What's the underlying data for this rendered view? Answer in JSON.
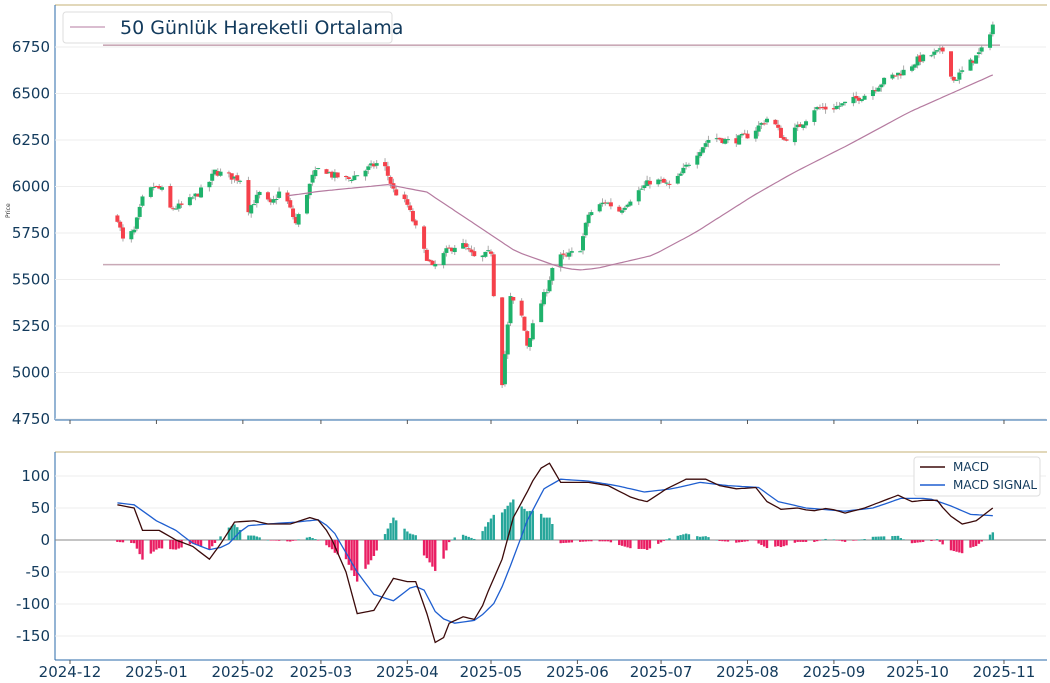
{
  "chart_data": [
    {
      "type": "candlestick",
      "title": "",
      "ylabel": "Price",
      "ylim": [
        4700,
        6976
      ],
      "yticks": [
        4750,
        5000,
        5250,
        5500,
        5750,
        6000,
        6250,
        6500,
        6750
      ],
      "legend": {
        "placement": "top-left",
        "entries": [
          "50 Günlük Hareketli Ortalama"
        ]
      },
      "colors": {
        "up": "#1fb26b",
        "down": "#f5414b",
        "ma": "#b57ba0",
        "level": "#c9a9b6",
        "axis_text": "#123a5c"
      },
      "horizontal_levels": [
        6760,
        5580
      ],
      "close_anchors": [
        [
          "2024-12-18",
          5830
        ],
        [
          "2024-12-20",
          5710
        ],
        [
          "2024-12-24",
          5760
        ],
        [
          "2024-12-27",
          5930
        ],
        [
          "2024-12-31",
          6000
        ],
        [
          "2025-01-03",
          5980
        ],
        [
          "2025-01-06",
          5880
        ],
        [
          "2025-01-11",
          5900
        ],
        [
          "2025-01-15",
          5950
        ],
        [
          "2025-01-19",
          6000
        ],
        [
          "2025-01-22",
          6080
        ],
        [
          "2025-01-26",
          6060
        ],
        [
          "2025-01-31",
          6040
        ],
        [
          "2025-02-03",
          5880
        ],
        [
          "2025-02-07",
          5960
        ],
        [
          "2025-02-11",
          5900
        ],
        [
          "2025-02-15",
          5990
        ],
        [
          "2025-02-20",
          5800
        ],
        [
          "2025-02-26",
          6050
        ],
        [
          "2025-03-01",
          6110
        ],
        [
          "2025-03-05",
          6060
        ],
        [
          "2025-03-11",
          6040
        ],
        [
          "2025-03-16",
          6080
        ],
        [
          "2025-03-23",
          6140
        ],
        [
          "2025-03-27",
          5980
        ],
        [
          "2025-04-01",
          5900
        ],
        [
          "2025-04-07",
          5650
        ],
        [
          "2025-04-10",
          5560
        ],
        [
          "2025-04-15",
          5650
        ],
        [
          "2025-04-20",
          5700
        ],
        [
          "2025-04-26",
          5600
        ],
        [
          "2025-05-01",
          5650
        ],
        [
          "2025-05-03",
          5200
        ],
        [
          "2025-05-05",
          4950
        ],
        [
          "2025-05-08",
          5400
        ],
        [
          "2025-05-12",
          5300
        ],
        [
          "2025-05-14",
          5150
        ],
        [
          "2025-05-17",
          5300
        ],
        [
          "2025-05-21",
          5450
        ],
        [
          "2025-05-24",
          5620
        ],
        [
          "2025-05-28",
          5620
        ],
        [
          "2025-06-02",
          5670
        ],
        [
          "2025-06-05",
          5850
        ],
        [
          "2025-06-11",
          5920
        ],
        [
          "2025-06-16",
          5870
        ],
        [
          "2025-06-21",
          5950
        ],
        [
          "2025-06-28",
          6040
        ],
        [
          "2025-07-05",
          6000
        ],
        [
          "2025-07-12",
          6150
        ],
        [
          "2025-07-19",
          6270
        ],
        [
          "2025-07-26",
          6240
        ],
        [
          "2025-08-02",
          6280
        ],
        [
          "2025-08-09",
          6380
        ],
        [
          "2025-08-14",
          6250
        ],
        [
          "2025-08-20",
          6330
        ],
        [
          "2025-08-25",
          6420
        ],
        [
          "2025-08-31",
          6420
        ],
        [
          "2025-09-06",
          6450
        ],
        [
          "2025-09-13",
          6500
        ],
        [
          "2025-09-20",
          6580
        ],
        [
          "2025-09-26",
          6620
        ],
        [
          "2025-10-01",
          6680
        ],
        [
          "2025-10-10",
          6730
        ],
        [
          "2025-10-14",
          6570
        ],
        [
          "2025-10-19",
          6650
        ],
        [
          "2025-10-24",
          6730
        ],
        [
          "2025-10-28",
          6870
        ]
      ],
      "ma50_anchors": [
        [
          "2025-02-17",
          5950
        ],
        [
          "2025-03-01",
          5975
        ],
        [
          "2025-03-25",
          6010
        ],
        [
          "2025-04-08",
          5970
        ],
        [
          "2025-04-25",
          5800
        ],
        [
          "2025-05-10",
          5650
        ],
        [
          "2025-05-25",
          5570
        ],
        [
          "2025-06-01",
          5550
        ],
        [
          "2025-06-08",
          5560
        ],
        [
          "2025-06-28",
          5630
        ],
        [
          "2025-07-13",
          5750
        ],
        [
          "2025-08-03",
          5950
        ],
        [
          "2025-08-17",
          6070
        ],
        [
          "2025-09-07",
          6230
        ],
        [
          "2025-09-28",
          6400
        ],
        [
          "2025-10-28",
          6600
        ]
      ]
    },
    {
      "type": "line",
      "ylim": [
        -187,
        137
      ],
      "yticks": [
        -150,
        -100,
        -50,
        0,
        50,
        100
      ],
      "xticks": [
        "2024-12",
        "2025-01",
        "2025-02",
        "2025-03",
        "2025-04",
        "2025-05",
        "2025-06",
        "2025-07",
        "2025-08",
        "2025-09",
        "2025-10",
        "2025-11"
      ],
      "legend": {
        "placement": "top-right",
        "entries": [
          "MACD",
          "MACD SIGNAL"
        ]
      },
      "colors": {
        "macd": "#3b0a0a",
        "signal": "#1f5fd0",
        "hist_pos": "#26a69a",
        "hist_neg": "#e91e63"
      },
      "series": [
        {
          "name": "MACD",
          "anchors": [
            [
              "2024-12-18",
              55
            ],
            [
              "2024-12-24",
              50
            ],
            [
              "2024-12-27",
              15
            ],
            [
              "2025-01-02",
              15
            ],
            [
              "2025-01-08",
              0
            ],
            [
              "2025-01-14",
              -10
            ],
            [
              "2025-01-20",
              -30
            ],
            [
              "2025-01-25",
              0
            ],
            [
              "2025-01-29",
              28
            ],
            [
              "2025-02-05",
              30
            ],
            [
              "2025-02-10",
              25
            ],
            [
              "2025-02-18",
              25
            ],
            [
              "2025-02-25",
              35
            ],
            [
              "2025-03-01",
              30
            ],
            [
              "2025-03-05",
              0
            ],
            [
              "2025-03-10",
              -50
            ],
            [
              "2025-03-14",
              -115
            ],
            [
              "2025-03-20",
              -110
            ],
            [
              "2025-03-27",
              -60
            ],
            [
              "2025-04-01",
              -65
            ],
            [
              "2025-04-04",
              -65
            ],
            [
              "2025-04-08",
              -115
            ],
            [
              "2025-04-12",
              -175
            ],
            [
              "2025-04-16",
              -130
            ],
            [
              "2025-04-21",
              -120
            ],
            [
              "2025-04-26",
              -125
            ],
            [
              "2025-04-30",
              -80
            ],
            [
              "2025-05-05",
              -30
            ],
            [
              "2025-05-09",
              35
            ],
            [
              "2025-05-14",
              75
            ],
            [
              "2025-05-18",
              110
            ],
            [
              "2025-05-22",
              120
            ],
            [
              "2025-05-26",
              90
            ],
            [
              "2025-06-05",
              90
            ],
            [
              "2025-06-12",
              85
            ],
            [
              "2025-06-21",
              65
            ],
            [
              "2025-06-26",
              60
            ],
            [
              "2025-07-03",
              80
            ],
            [
              "2025-07-10",
              95
            ],
            [
              "2025-07-17",
              95
            ],
            [
              "2025-07-22",
              85
            ],
            [
              "2025-07-28",
              80
            ],
            [
              "2025-08-04",
              82
            ],
            [
              "2025-08-08",
              60
            ],
            [
              "2025-08-13",
              48
            ],
            [
              "2025-08-19",
              50
            ],
            [
              "2025-08-24",
              45
            ],
            [
              "2025-08-30",
              50
            ],
            [
              "2025-09-05",
              42
            ],
            [
              "2025-09-12",
              50
            ],
            [
              "2025-09-18",
              60
            ],
            [
              "2025-09-24",
              70
            ],
            [
              "2025-09-29",
              60
            ],
            [
              "2025-10-03",
              62
            ],
            [
              "2025-10-08",
              62
            ],
            [
              "2025-10-12",
              40
            ],
            [
              "2025-10-17",
              25
            ],
            [
              "2025-10-22",
              30
            ],
            [
              "2025-10-28",
              50
            ]
          ]
        },
        {
          "name": "MACD SIGNAL",
          "anchors": [
            [
              "2024-12-18",
              58
            ],
            [
              "2024-12-24",
              55
            ],
            [
              "2025-01-01",
              30
            ],
            [
              "2025-01-08",
              15
            ],
            [
              "2025-01-14",
              -5
            ],
            [
              "2025-01-20",
              -15
            ],
            [
              "2025-01-26",
              -10
            ],
            [
              "2025-02-02",
              22
            ],
            [
              "2025-02-10",
              25
            ],
            [
              "2025-02-20",
              28
            ],
            [
              "2025-03-01",
              32
            ],
            [
              "2025-03-06",
              10
            ],
            [
              "2025-03-14",
              -50
            ],
            [
              "2025-03-20",
              -85
            ],
            [
              "2025-03-27",
              -95
            ],
            [
              "2025-04-02",
              -75
            ],
            [
              "2025-04-06",
              -70
            ],
            [
              "2025-04-12",
              -120
            ],
            [
              "2025-04-18",
              -130
            ],
            [
              "2025-04-26",
              -125
            ],
            [
              "2025-05-03",
              -95
            ],
            [
              "2025-05-08",
              -40
            ],
            [
              "2025-05-14",
              30
            ],
            [
              "2025-05-20",
              80
            ],
            [
              "2025-05-26",
              95
            ],
            [
              "2025-06-05",
              92
            ],
            [
              "2025-06-15",
              85
            ],
            [
              "2025-06-25",
              75
            ],
            [
              "2025-07-05",
              80
            ],
            [
              "2025-07-15",
              90
            ],
            [
              "2025-07-25",
              85
            ],
            [
              "2025-08-05",
              82
            ],
            [
              "2025-08-12",
              60
            ],
            [
              "2025-08-22",
              50
            ],
            [
              "2025-09-05",
              45
            ],
            [
              "2025-09-15",
              50
            ],
            [
              "2025-09-25",
              65
            ],
            [
              "2025-10-05",
              65
            ],
            [
              "2025-10-12",
              55
            ],
            [
              "2025-10-20",
              40
            ],
            [
              "2025-10-28",
              38
            ]
          ]
        }
      ],
      "histogram": "MACD - MACD SIGNAL"
    }
  ]
}
